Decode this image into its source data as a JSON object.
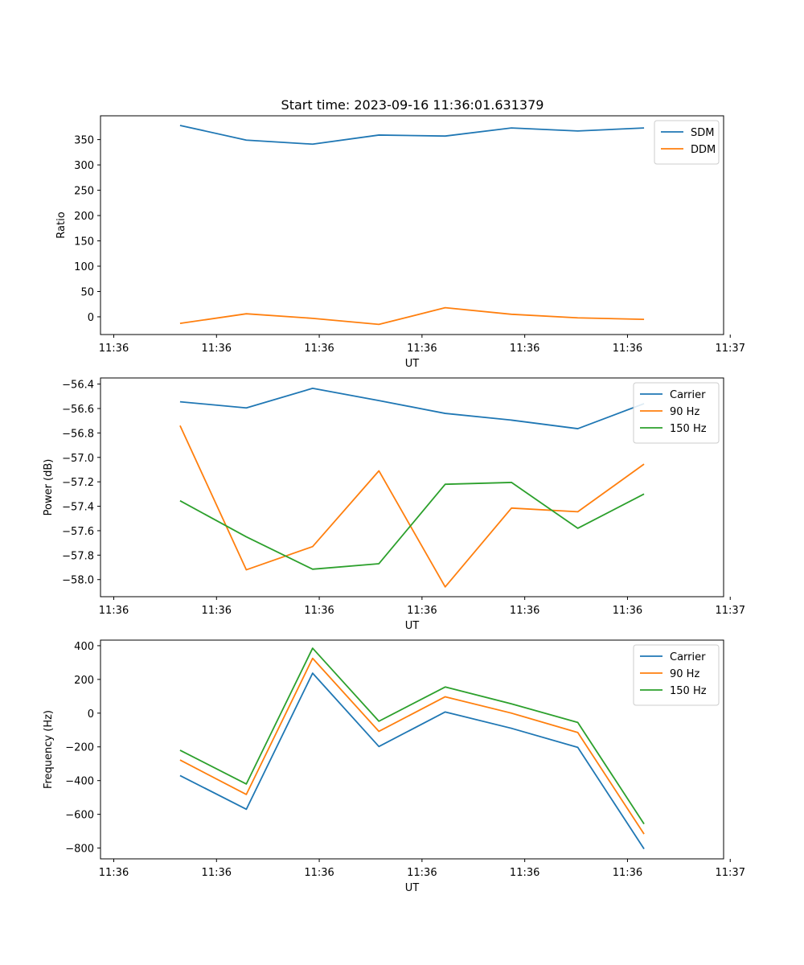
{
  "figure_title": "Start time: 2023-09-16 11:36:01.631379",
  "colors": {
    "blue": "#1f77b4",
    "orange": "#ff7f0e",
    "green": "#2ca02c"
  },
  "chart_data": [
    {
      "type": "line",
      "title": "Start time: 2023-09-16 11:36:01.631379",
      "xlabel": "UT",
      "ylabel": "Ratio",
      "x": [
        1,
        2,
        3,
        4,
        5,
        6,
        7,
        8
      ],
      "xlim": [
        -0.2,
        9.2
      ],
      "xticks": [
        0,
        1.55,
        3.1,
        4.65,
        6.2,
        7.75,
        9.3
      ],
      "xtick_labels": [
        "11:36",
        "11:36",
        "11:36",
        "11:36",
        "11:36",
        "11:36",
        "11:37"
      ],
      "ylim": [
        -35,
        397
      ],
      "yticks": [
        0,
        50,
        100,
        150,
        200,
        250,
        300,
        350
      ],
      "ytick_labels": [
        "0",
        "50",
        "100",
        "150",
        "200",
        "250",
        "300",
        "350"
      ],
      "legend_position": "top-right",
      "series": [
        {
          "name": "SDM",
          "color": "#1f77b4",
          "values": [
            378,
            349,
            341,
            359,
            357,
            373,
            367,
            373
          ]
        },
        {
          "name": "DDM",
          "color": "#ff7f0e",
          "values": [
            -13,
            6,
            -3,
            -15,
            18,
            5,
            -2,
            -5
          ]
        }
      ]
    },
    {
      "type": "line",
      "title": "",
      "xlabel": "UT",
      "ylabel": "Power (dB)",
      "x": [
        1,
        2,
        3,
        4,
        5,
        6,
        7,
        8
      ],
      "xlim": [
        -0.2,
        9.2
      ],
      "xticks": [
        0,
        1.55,
        3.1,
        4.65,
        6.2,
        7.75,
        9.3
      ],
      "xtick_labels": [
        "11:36",
        "11:36",
        "11:36",
        "11:36",
        "11:36",
        "11:36",
        "11:37"
      ],
      "ylim": [
        -58.14,
        -56.35
      ],
      "yticks": [
        -58.0,
        -57.8,
        -57.6,
        -57.4,
        -57.2,
        -57.0,
        -56.8,
        -56.6,
        -56.4
      ],
      "ytick_labels": [
        "−58.0",
        "−57.8",
        "−57.6",
        "−57.4",
        "−57.2",
        "−57.0",
        "−56.8",
        "−56.6",
        "−56.4"
      ],
      "legend_position": "top-right",
      "series": [
        {
          "name": "Carrier",
          "color": "#1f77b4",
          "values": [
            -56.545,
            -56.595,
            -56.435,
            -56.535,
            -56.64,
            -56.695,
            -56.765,
            -56.56
          ]
        },
        {
          "name": "90 Hz",
          "color": "#ff7f0e",
          "values": [
            -56.74,
            -57.92,
            -57.73,
            -57.11,
            -58.06,
            -57.415,
            -57.445,
            -57.055
          ]
        },
        {
          "name": "150 Hz",
          "color": "#2ca02c",
          "values": [
            -57.355,
            -57.65,
            -57.915,
            -57.87,
            -57.22,
            -57.205,
            -57.58,
            -57.3
          ]
        }
      ]
    },
    {
      "type": "line",
      "title": "",
      "xlabel": "UT",
      "ylabel": "Frequency (Hz)",
      "x": [
        1,
        2,
        3,
        4,
        5,
        6,
        7,
        8
      ],
      "xlim": [
        -0.2,
        9.2
      ],
      "xticks": [
        0,
        1.55,
        3.1,
        4.65,
        6.2,
        7.75,
        9.3
      ],
      "xtick_labels": [
        "11:36",
        "11:36",
        "11:36",
        "11:36",
        "11:36",
        "11:36",
        "11:37"
      ],
      "ylim": [
        -864,
        433
      ],
      "yticks": [
        -800,
        -600,
        -400,
        -200,
        0,
        200,
        400
      ],
      "ytick_labels": [
        "−800",
        "−600",
        "−400",
        "−200",
        "0",
        "200",
        "400"
      ],
      "legend_position": "top-right",
      "series": [
        {
          "name": "Carrier",
          "color": "#1f77b4",
          "values": [
            -370,
            -570,
            237,
            -198,
            7,
            -90,
            -203,
            -805
          ]
        },
        {
          "name": "90 Hz",
          "color": "#ff7f0e",
          "values": [
            -278,
            -482,
            325,
            -108,
            97,
            0,
            -115,
            -717
          ]
        },
        {
          "name": "150 Hz",
          "color": "#2ca02c",
          "values": [
            -220,
            -420,
            385,
            -48,
            155,
            55,
            -55,
            -657
          ]
        }
      ]
    }
  ]
}
